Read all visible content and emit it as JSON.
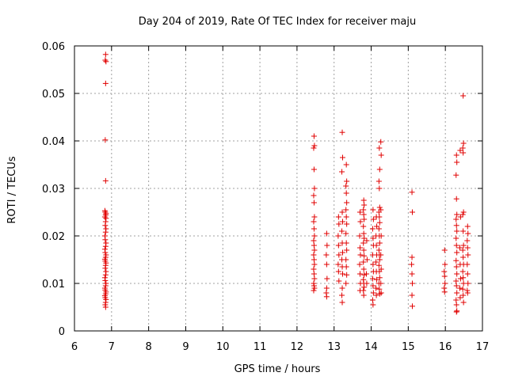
{
  "chart_data": {
    "type": "scatter",
    "title": "Day 204 of 2019, Rate Of TEC Index for receiver maju",
    "xlabel": "GPS time / hours",
    "ylabel": "ROTI / TECUs",
    "xlim": [
      6,
      17
    ],
    "ylim": [
      0,
      0.06
    ],
    "x_ticks": [
      6,
      7,
      8,
      9,
      10,
      11,
      12,
      13,
      14,
      15,
      16,
      17
    ],
    "x_tick_labels": [
      "6",
      "7",
      "8",
      "9",
      "10",
      "11",
      "12",
      "13",
      "14",
      "15",
      "16",
      "17"
    ],
    "y_ticks": [
      0,
      0.01,
      0.02,
      0.03,
      0.04,
      0.05,
      0.06
    ],
    "y_tick_labels": [
      "0",
      "0.01",
      "0.02",
      "0.03",
      "0.04",
      "0.05",
      "0.06"
    ],
    "grid": true,
    "marker": "+",
    "marker_color": "#e00000",
    "series": [
      {
        "name": "ROTI",
        "points": [
          [
            6.84,
            0.0582
          ],
          [
            6.83,
            0.057
          ],
          [
            6.85,
            0.0567
          ],
          [
            6.84,
            0.0521
          ],
          [
            6.83,
            0.0402
          ],
          [
            6.84,
            0.0316
          ],
          [
            6.82,
            0.0253
          ],
          [
            6.83,
            0.025
          ],
          [
            6.85,
            0.0247
          ],
          [
            6.84,
            0.0244
          ],
          [
            6.82,
            0.024
          ],
          [
            6.85,
            0.0237
          ],
          [
            6.84,
            0.023
          ],
          [
            6.83,
            0.0222
          ],
          [
            6.85,
            0.0215
          ],
          [
            6.84,
            0.0208
          ],
          [
            6.82,
            0.02
          ],
          [
            6.83,
            0.0192
          ],
          [
            6.85,
            0.0185
          ],
          [
            6.84,
            0.0178
          ],
          [
            6.82,
            0.0172
          ],
          [
            6.83,
            0.0165
          ],
          [
            6.85,
            0.016
          ],
          [
            6.84,
            0.0155
          ],
          [
            6.82,
            0.0151
          ],
          [
            6.83,
            0.0147
          ],
          [
            6.85,
            0.0143
          ],
          [
            6.84,
            0.0138
          ],
          [
            6.83,
            0.0132
          ],
          [
            6.85,
            0.0125
          ],
          [
            6.84,
            0.0118
          ],
          [
            6.82,
            0.0112
          ],
          [
            6.83,
            0.0106
          ],
          [
            6.85,
            0.01
          ],
          [
            6.84,
            0.0095
          ],
          [
            6.82,
            0.009
          ],
          [
            6.83,
            0.0086
          ],
          [
            6.85,
            0.0082
          ],
          [
            6.84,
            0.0078
          ],
          [
            6.82,
            0.0074
          ],
          [
            6.83,
            0.007
          ],
          [
            6.85,
            0.0066
          ],
          [
            6.84,
            0.006
          ],
          [
            6.83,
            0.0055
          ],
          [
            6.84,
            0.005
          ],
          [
            12.46,
            0.041
          ],
          [
            12.47,
            0.039
          ],
          [
            12.45,
            0.0385
          ],
          [
            12.46,
            0.034
          ],
          [
            12.47,
            0.03
          ],
          [
            12.45,
            0.0285
          ],
          [
            12.46,
            0.027
          ],
          [
            12.47,
            0.024
          ],
          [
            12.45,
            0.023
          ],
          [
            12.46,
            0.0215
          ],
          [
            12.47,
            0.02
          ],
          [
            12.45,
            0.019
          ],
          [
            12.46,
            0.018
          ],
          [
            12.47,
            0.017
          ],
          [
            12.45,
            0.016
          ],
          [
            12.46,
            0.015
          ],
          [
            12.47,
            0.014
          ],
          [
            12.45,
            0.013
          ],
          [
            12.46,
            0.012
          ],
          [
            12.47,
            0.011
          ],
          [
            12.45,
            0.01
          ],
          [
            12.46,
            0.0095
          ],
          [
            12.47,
            0.009
          ],
          [
            12.45,
            0.0085
          ],
          [
            12.8,
            0.0205
          ],
          [
            12.81,
            0.018
          ],
          [
            12.79,
            0.016
          ],
          [
            12.8,
            0.014
          ],
          [
            12.81,
            0.011
          ],
          [
            12.8,
            0.009
          ],
          [
            12.79,
            0.008
          ],
          [
            12.8,
            0.0072
          ],
          [
            13.12,
            0.024
          ],
          [
            13.13,
            0.0225
          ],
          [
            13.11,
            0.02
          ],
          [
            13.12,
            0.018
          ],
          [
            13.13,
            0.016
          ],
          [
            13.11,
            0.014
          ],
          [
            13.12,
            0.0125
          ],
          [
            13.13,
            0.0105
          ],
          [
            13.22,
            0.0418
          ],
          [
            13.23,
            0.0365
          ],
          [
            13.21,
            0.0335
          ],
          [
            13.22,
            0.025
          ],
          [
            13.23,
            0.023
          ],
          [
            13.21,
            0.021
          ],
          [
            13.22,
            0.0185
          ],
          [
            13.23,
            0.0165
          ],
          [
            13.21,
            0.015
          ],
          [
            13.22,
            0.0135
          ],
          [
            13.23,
            0.012
          ],
          [
            13.22,
            0.009
          ],
          [
            13.21,
            0.0075
          ],
          [
            13.22,
            0.006
          ],
          [
            13.33,
            0.035
          ],
          [
            13.34,
            0.0315
          ],
          [
            13.32,
            0.0305
          ],
          [
            13.33,
            0.029
          ],
          [
            13.34,
            0.027
          ],
          [
            13.32,
            0.0255
          ],
          [
            13.33,
            0.024
          ],
          [
            13.34,
            0.0225
          ],
          [
            13.32,
            0.0205
          ],
          [
            13.33,
            0.0185
          ],
          [
            13.34,
            0.017
          ],
          [
            13.32,
            0.015
          ],
          [
            13.33,
            0.0135
          ],
          [
            13.34,
            0.0118
          ],
          [
            13.32,
            0.01
          ],
          [
            13.7,
            0.025
          ],
          [
            13.71,
            0.023
          ],
          [
            13.69,
            0.02
          ],
          [
            13.7,
            0.0175
          ],
          [
            13.71,
            0.016
          ],
          [
            13.69,
            0.014
          ],
          [
            13.7,
            0.012
          ],
          [
            13.71,
            0.01
          ],
          [
            13.7,
            0.0085
          ],
          [
            13.8,
            0.0275
          ],
          [
            13.81,
            0.0265
          ],
          [
            13.79,
            0.0255
          ],
          [
            13.8,
            0.0245
          ],
          [
            13.81,
            0.0235
          ],
          [
            13.79,
            0.022
          ],
          [
            13.8,
            0.0205
          ],
          [
            13.81,
            0.0195
          ],
          [
            13.79,
            0.0185
          ],
          [
            13.8,
            0.017
          ],
          [
            13.81,
            0.0158
          ],
          [
            13.79,
            0.0145
          ],
          [
            13.8,
            0.013
          ],
          [
            13.81,
            0.0118
          ],
          [
            13.79,
            0.0108
          ],
          [
            13.8,
            0.01
          ],
          [
            13.81,
            0.0092
          ],
          [
            13.79,
            0.0085
          ],
          [
            13.8,
            0.0075
          ],
          [
            13.88,
            0.019
          ],
          [
            13.89,
            0.015
          ],
          [
            13.87,
            0.012
          ],
          [
            13.88,
            0.01
          ],
          [
            14.05,
            0.0255
          ],
          [
            14.06,
            0.0235
          ],
          [
            14.04,
            0.0215
          ],
          [
            14.05,
            0.0195
          ],
          [
            14.06,
            0.018
          ],
          [
            14.04,
            0.016
          ],
          [
            14.05,
            0.014
          ],
          [
            14.06,
            0.0125
          ],
          [
            14.04,
            0.011
          ],
          [
            14.05,
            0.0095
          ],
          [
            14.06,
            0.008
          ],
          [
            14.04,
            0.0065
          ],
          [
            14.05,
            0.0055
          ],
          [
            14.14,
            0.024
          ],
          [
            14.15,
            0.022
          ],
          [
            14.13,
            0.02
          ],
          [
            14.14,
            0.018
          ],
          [
            14.15,
            0.016
          ],
          [
            14.13,
            0.0145
          ],
          [
            14.14,
            0.0125
          ],
          [
            14.15,
            0.0108
          ],
          [
            14.13,
            0.009
          ],
          [
            14.14,
            0.0075
          ],
          [
            14.22,
            0.0385
          ],
          [
            14.23,
            0.034
          ],
          [
            14.21,
            0.0315
          ],
          [
            14.22,
            0.03
          ],
          [
            14.23,
            0.026
          ],
          [
            14.21,
            0.025
          ],
          [
            14.22,
            0.024
          ],
          [
            14.23,
            0.0228
          ],
          [
            14.21,
            0.0215
          ],
          [
            14.22,
            0.02
          ],
          [
            14.23,
            0.0185
          ],
          [
            14.21,
            0.017
          ],
          [
            14.22,
            0.016
          ],
          [
            14.23,
            0.015
          ],
          [
            14.21,
            0.0138
          ],
          [
            14.22,
            0.0125
          ],
          [
            14.23,
            0.0112
          ],
          [
            14.21,
            0.01
          ],
          [
            14.22,
            0.0088
          ],
          [
            14.23,
            0.0078
          ],
          [
            14.26,
            0.0398
          ],
          [
            14.27,
            0.037
          ],
          [
            14.26,
            0.0255
          ],
          [
            14.27,
            0.02
          ],
          [
            14.26,
            0.016
          ],
          [
            14.27,
            0.013
          ],
          [
            14.26,
            0.01
          ],
          [
            14.27,
            0.008
          ],
          [
            15.1,
            0.0292
          ],
          [
            15.11,
            0.025
          ],
          [
            15.1,
            0.0155
          ],
          [
            15.09,
            0.014
          ],
          [
            15.1,
            0.012
          ],
          [
            15.11,
            0.01
          ],
          [
            15.1,
            0.0075
          ],
          [
            15.11,
            0.0052
          ],
          [
            15.98,
            0.017
          ],
          [
            15.99,
            0.014
          ],
          [
            15.97,
            0.0125
          ],
          [
            15.98,
            0.0115
          ],
          [
            15.99,
            0.01
          ],
          [
            15.97,
            0.009
          ],
          [
            15.98,
            0.0082
          ],
          [
            16.3,
            0.037
          ],
          [
            16.31,
            0.0355
          ],
          [
            16.29,
            0.0328
          ],
          [
            16.3,
            0.0278
          ],
          [
            16.31,
            0.0245
          ],
          [
            16.29,
            0.0235
          ],
          [
            16.3,
            0.0222
          ],
          [
            16.31,
            0.021
          ],
          [
            16.29,
            0.0195
          ],
          [
            16.3,
            0.018
          ],
          [
            16.31,
            0.0165
          ],
          [
            16.29,
            0.0148
          ],
          [
            16.3,
            0.0135
          ],
          [
            16.31,
            0.012
          ],
          [
            16.29,
            0.0105
          ],
          [
            16.3,
            0.0095
          ],
          [
            16.31,
            0.008
          ],
          [
            16.29,
            0.0065
          ],
          [
            16.3,
            0.0055
          ],
          [
            16.31,
            0.0042
          ],
          [
            16.3,
            0.004
          ],
          [
            16.4,
            0.038
          ],
          [
            16.41,
            0.024
          ],
          [
            16.39,
            0.0175
          ],
          [
            16.4,
            0.014
          ],
          [
            16.41,
            0.011
          ],
          [
            16.39,
            0.009
          ],
          [
            16.4,
            0.007
          ],
          [
            16.48,
            0.0495
          ],
          [
            16.49,
            0.0395
          ],
          [
            16.47,
            0.0385
          ],
          [
            16.48,
            0.0375
          ],
          [
            16.49,
            0.025
          ],
          [
            16.47,
            0.0245
          ],
          [
            16.48,
            0.021
          ],
          [
            16.49,
            0.018
          ],
          [
            16.47,
            0.017
          ],
          [
            16.48,
            0.0155
          ],
          [
            16.49,
            0.014
          ],
          [
            16.47,
            0.0125
          ],
          [
            16.48,
            0.0112
          ],
          [
            16.49,
            0.01
          ],
          [
            16.47,
            0.0088
          ],
          [
            16.48,
            0.0075
          ],
          [
            16.49,
            0.006
          ],
          [
            16.6,
            0.022
          ],
          [
            16.61,
            0.0205
          ],
          [
            16.59,
            0.019
          ],
          [
            16.6,
            0.0175
          ],
          [
            16.61,
            0.016
          ],
          [
            16.59,
            0.014
          ],
          [
            16.6,
            0.012
          ],
          [
            16.61,
            0.01
          ],
          [
            16.59,
            0.0085
          ],
          [
            16.6,
            0.008
          ]
        ]
      }
    ]
  }
}
